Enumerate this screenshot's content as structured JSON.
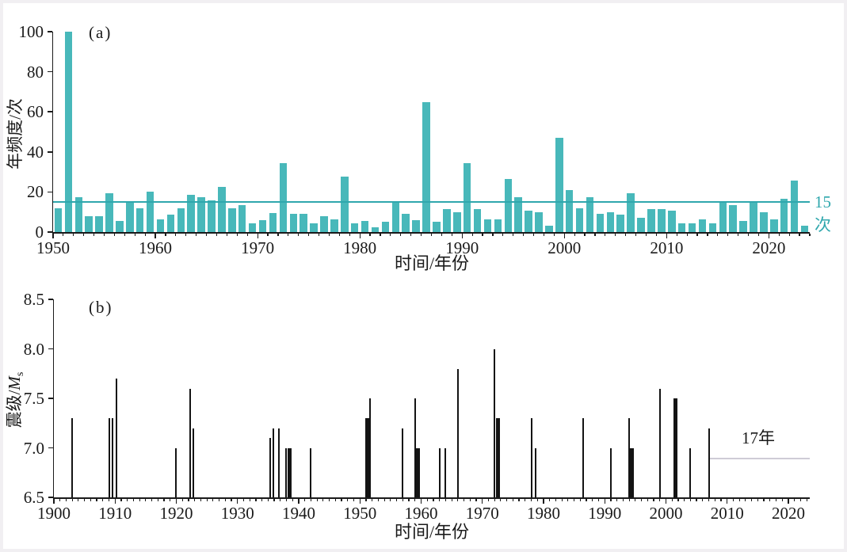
{
  "chart_data": [
    {
      "type": "bar",
      "panel_label": "(a)",
      "xlabel": "时间/年份",
      "ylabel": "年频度/次",
      "xlim": [
        1950,
        2024
      ],
      "ylim": [
        0,
        100
      ],
      "yticks": [
        0,
        20,
        40,
        60,
        80,
        100
      ],
      "xticks": [
        1950,
        1960,
        1970,
        1980,
        1990,
        2000,
        2010,
        2020
      ],
      "grid": false,
      "bar_color": "#48b8ba",
      "threshold": {
        "value": 15,
        "label": "15次",
        "color": "#2fa7ad"
      },
      "categories": [
        1950,
        1951,
        1952,
        1953,
        1954,
        1955,
        1956,
        1957,
        1958,
        1959,
        1960,
        1961,
        1962,
        1963,
        1964,
        1965,
        1966,
        1967,
        1968,
        1969,
        1970,
        1971,
        1972,
        1973,
        1974,
        1975,
        1976,
        1977,
        1978,
        1979,
        1980,
        1981,
        1982,
        1983,
        1984,
        1985,
        1986,
        1987,
        1988,
        1989,
        1990,
        1991,
        1992,
        1993,
        1994,
        1995,
        1996,
        1997,
        1998,
        1999,
        2000,
        2001,
        2002,
        2003,
        2004,
        2005,
        2006,
        2007,
        2008,
        2009,
        2010,
        2011,
        2012,
        2013,
        2014,
        2015,
        2016,
        2017,
        2018,
        2019,
        2020,
        2021,
        2022,
        2023
      ],
      "values": [
        12,
        100,
        17.5,
        8,
        8,
        19.5,
        5.5,
        15,
        12,
        20,
        6.5,
        8.5,
        12,
        18.5,
        17.5,
        16,
        22.5,
        12,
        13.5,
        4.5,
        6,
        9.5,
        34.5,
        9,
        9,
        4.5,
        8,
        6.5,
        27.5,
        4.5,
        5.5,
        2.5,
        5,
        15.5,
        9,
        6,
        65,
        5,
        11.5,
        10,
        34.5,
        11.5,
        6.5,
        6.5,
        26.5,
        17.5,
        10.5,
        10,
        3,
        47,
        21,
        12,
        17.5,
        9,
        10,
        8.5,
        19.5,
        7,
        11.5,
        11.5,
        10.5,
        4.5,
        4.5,
        6.5,
        4.5,
        15,
        13.5,
        5.5,
        15,
        10,
        6.5,
        16.5,
        25.5,
        3
      ]
    },
    {
      "type": "stem",
      "panel_label": "(b)",
      "xlabel": "时间/年份",
      "ylabel_prefix": "震级/",
      "ylabel_symbol": "M",
      "ylabel_subscript": "s",
      "xlim": [
        1900,
        2023.5
      ],
      "ylim": [
        6.5,
        8.5
      ],
      "yticks": [
        "6.5",
        "7.0",
        "7.5",
        "8.0",
        "8.5"
      ],
      "xticks": [
        1900,
        1910,
        1920,
        1930,
        1940,
        1950,
        1960,
        1970,
        1980,
        1990,
        2000,
        2010,
        2020
      ],
      "grid": false,
      "stem_color": "#141414",
      "events": [
        {
          "year": 1903,
          "ms": 7.3
        },
        {
          "year": 1909,
          "ms": 7.3
        },
        {
          "year": 1909.6,
          "ms": 7.3
        },
        {
          "year": 1910.2,
          "ms": 7.7
        },
        {
          "year": 1920,
          "ms": 7.0
        },
        {
          "year": 1922.3,
          "ms": 7.6
        },
        {
          "year": 1922.8,
          "ms": 7.2
        },
        {
          "year": 1935.3,
          "ms": 7.1
        },
        {
          "year": 1935.8,
          "ms": 7.2
        },
        {
          "year": 1936.8,
          "ms": 7.2
        },
        {
          "year": 1937.9,
          "ms": 7.0
        },
        {
          "year": 1938.5,
          "ms": 7.0,
          "double": true
        },
        {
          "year": 1942,
          "ms": 7.0
        },
        {
          "year": 1951.2,
          "ms": 7.3,
          "double": true
        },
        {
          "year": 1951.6,
          "ms": 7.5
        },
        {
          "year": 1957,
          "ms": 7.2
        },
        {
          "year": 1959,
          "ms": 7.5
        },
        {
          "year": 1959.5,
          "ms": 7.0,
          "double": true
        },
        {
          "year": 1963,
          "ms": 7.0
        },
        {
          "year": 1964,
          "ms": 7.0
        },
        {
          "year": 1966,
          "ms": 7.8
        },
        {
          "year": 1972,
          "ms": 8.0
        },
        {
          "year": 1972.5,
          "ms": 7.3,
          "double": true
        },
        {
          "year": 1978,
          "ms": 7.3
        },
        {
          "year": 1978.7,
          "ms": 7.0
        },
        {
          "year": 1986.5,
          "ms": 7.3
        },
        {
          "year": 1991,
          "ms": 7.0
        },
        {
          "year": 1994,
          "ms": 7.3
        },
        {
          "year": 1994.4,
          "ms": 7.0,
          "double": true
        },
        {
          "year": 1999,
          "ms": 7.6
        },
        {
          "year": 2001.5,
          "ms": 7.5,
          "double": true
        },
        {
          "year": 2004,
          "ms": 7.0
        },
        {
          "year": 2007,
          "ms": 7.2
        }
      ],
      "gap_annotation": {
        "label": "17年",
        "from_year": 2007,
        "to_year": 2023.5,
        "line_ms": 6.9,
        "line_color": "#cfccd6"
      }
    }
  ]
}
